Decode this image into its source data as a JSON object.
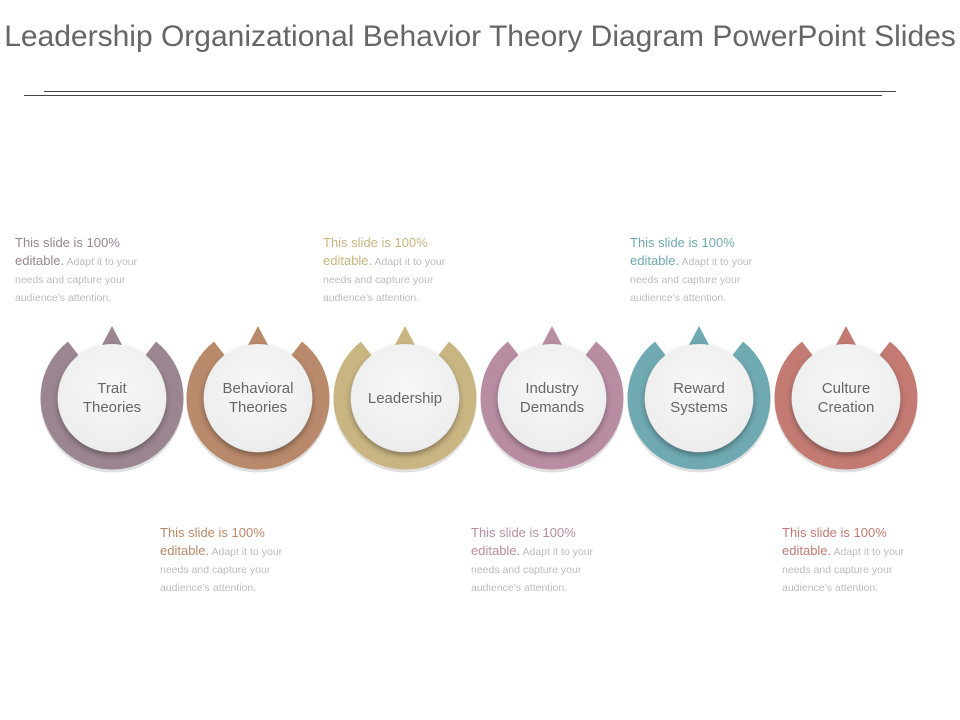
{
  "title": "Leadership Organizational Behavior Theory Diagram PowerPoint Slides",
  "nodes": [
    {
      "label": "Trait\nTheories",
      "color": "#9a8591"
    },
    {
      "label": "Behavioral\nTheories",
      "color": "#b8896a"
    },
    {
      "label": "Leadership",
      "color": "#c9b582"
    },
    {
      "label": "Industry\nDemands",
      "color": "#b88ca1"
    },
    {
      "label": "Reward\nSystems",
      "color": "#6fa9b2"
    },
    {
      "label": "Culture\nCreation",
      "color": "#c27a73"
    }
  ],
  "notes": [
    {
      "line1": "This slide is 100%",
      "word2": "editable.",
      "rest": " Adapt it to your needs and capture your audience’s attention.",
      "color": "#9a8591"
    },
    {
      "line1": "This slide is 100%",
      "word2": "editable.",
      "rest": " Adapt it to your needs and capture your audience’s attention.",
      "color": "#b8896a"
    },
    {
      "line1": "This slide is 100%",
      "word2": "editable.",
      "rest": " Adapt it to your needs and capture your audience’s attention.",
      "color": "#c9b582"
    },
    {
      "line1": "This slide is 100%",
      "word2": "editable.",
      "rest": " Adapt it to your needs and capture your audience’s attention.",
      "color": "#b88ca1"
    },
    {
      "line1": "This slide is 100%",
      "word2": "editable.",
      "rest": " Adapt it to your needs and capture your audience’s attention.",
      "color": "#6fa9b2"
    },
    {
      "line1": "This slide is 100%",
      "word2": "editable.",
      "rest": " Adapt it to your needs and capture your audience’s attention.",
      "color": "#c27a73"
    }
  ]
}
